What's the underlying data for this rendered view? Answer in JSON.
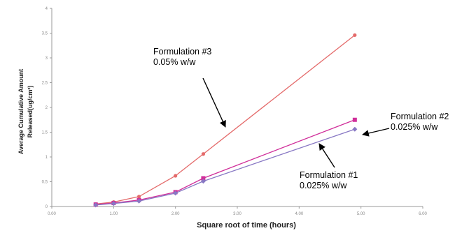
{
  "chart_data": {
    "type": "line",
    "title": "",
    "xlabel": "Square root of time (hours)",
    "ylabel_lines": [
      "Average Cumulative Amount",
      "Released(ug/cm²)"
    ],
    "xlim": [
      0,
      6
    ],
    "ylim": [
      0,
      4
    ],
    "x_ticks": [
      "0.00",
      "1.00",
      "2.00",
      "3.00",
      "4.00",
      "5.00",
      "6.00"
    ],
    "y_ticks": [
      "0",
      "0.5",
      "1",
      "1.5",
      "2",
      "2.5",
      "3",
      "3.5",
      "4"
    ],
    "grid": false,
    "legend": "none",
    "series": [
      {
        "id": "f3",
        "color": "#e46a6a",
        "marker": "circle",
        "x": [
          0.71,
          1.0,
          1.41,
          2.0,
          2.45,
          4.9
        ],
        "y": [
          0.05,
          0.09,
          0.2,
          0.62,
          1.06,
          3.46
        ]
      },
      {
        "id": "f2",
        "color": "#d02e9a",
        "marker": "square",
        "x": [
          0.71,
          1.0,
          1.41,
          2.0,
          2.45,
          4.9
        ],
        "y": [
          0.04,
          0.07,
          0.13,
          0.29,
          0.57,
          1.75
        ]
      },
      {
        "id": "f1",
        "color": "#8878c4",
        "marker": "diamond",
        "x": [
          0.71,
          1.0,
          1.41,
          2.0,
          2.45,
          4.9
        ],
        "y": [
          0.03,
          0.06,
          0.11,
          0.27,
          0.51,
          1.56
        ]
      }
    ],
    "annotations": [
      {
        "id": "f3",
        "line1": "Formulation #3",
        "line2": "0.05% w/w"
      },
      {
        "id": "f2",
        "line1": "Formulation #2",
        "line2": "0.025% w/w"
      },
      {
        "id": "f1",
        "line1": "Formulation #1",
        "line2": "0.025% w/w"
      }
    ]
  }
}
